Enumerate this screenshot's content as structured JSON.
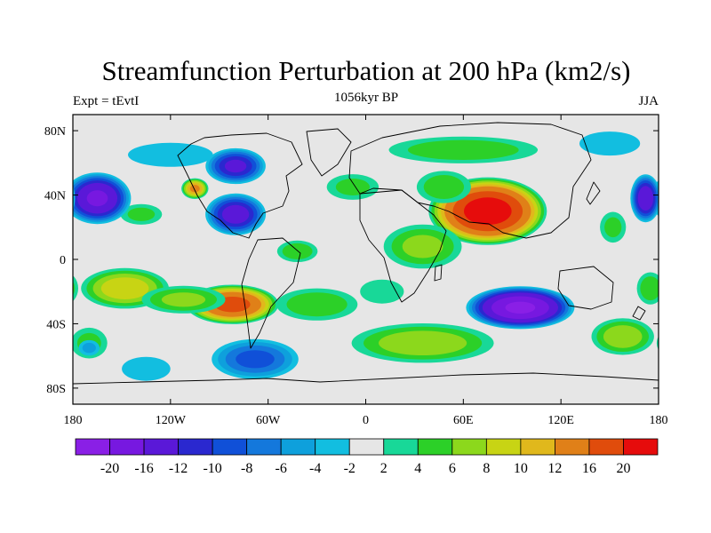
{
  "title": "Streamfunction Perturbation at 200 hPa (km2/s)",
  "left_label": "Expt = tEvtI",
  "center_label": "1056kyr BP",
  "right_label": "JJA",
  "y_ticks": [
    {
      "lat": 80,
      "label": "80N"
    },
    {
      "lat": 40,
      "label": "40N"
    },
    {
      "lat": 0,
      "label": "0"
    },
    {
      "lat": -40,
      "label": "40S"
    },
    {
      "lat": -80,
      "label": "80S"
    }
  ],
  "x_ticks": [
    {
      "lon": -180,
      "label": "180"
    },
    {
      "lon": -120,
      "label": "120W"
    },
    {
      "lon": -60,
      "label": "60W"
    },
    {
      "lon": 0,
      "label": "0"
    },
    {
      "lon": 60,
      "label": "60E"
    },
    {
      "lon": 120,
      "label": "120E"
    },
    {
      "lon": 180,
      "label": "180"
    }
  ],
  "colorbar": {
    "colors": [
      "#8a1fe6",
      "#7718e0",
      "#5a18d8",
      "#2a28cf",
      "#1050d8",
      "#1478dc",
      "#0ea0dc",
      "#12bee0",
      "#e6e6e6",
      "#18d898",
      "#2cd028",
      "#8cd81c",
      "#c8d414",
      "#e0b81c",
      "#e08018",
      "#e04c0c",
      "#e60c0c"
    ],
    "labels": [
      "-20",
      "-16",
      "-12",
      "-10",
      "-8",
      "-6",
      "-4",
      "-2",
      "2",
      "4",
      "6",
      "8",
      "10",
      "12",
      "16",
      "20"
    ]
  },
  "chart_data": {
    "type": "heatmap",
    "title": "Streamfunction Perturbation at 200 hPa (km2/s)",
    "variable": "Streamfunction Perturbation",
    "level": "200 hPa",
    "units": "km2/s",
    "experiment": "tEvtI",
    "time": "1056kyr BP",
    "season": "JJA",
    "lon_range": [
      -180,
      180
    ],
    "lat_range": [
      -90,
      90
    ],
    "contour_levels": [
      -20,
      -16,
      -12,
      -10,
      -8,
      -6,
      -4,
      -2,
      2,
      4,
      6,
      8,
      10,
      12,
      16,
      20
    ],
    "features": [
      {
        "lon": 75,
        "lat": 30,
        "lon_width": 38,
        "lat_width": 22,
        "value": 22
      },
      {
        "lon": 48,
        "lat": 45,
        "lon_width": 20,
        "lat_width": 12,
        "value": 5
      },
      {
        "lon": 60,
        "lat": 68,
        "lon_width": 55,
        "lat_width": 10,
        "value": 5
      },
      {
        "lon": 35,
        "lat": 8,
        "lon_width": 28,
        "lat_width": 16,
        "value": 6
      },
      {
        "lon": -8,
        "lat": 45,
        "lon_width": 20,
        "lat_width": 10,
        "value": 4
      },
      {
        "lon": -42,
        "lat": 5,
        "lon_width": 15,
        "lat_width": 8,
        "value": 5
      },
      {
        "lon": -82,
        "lat": -28,
        "lon_width": 30,
        "lat_width": 13,
        "value": 17
      },
      {
        "lon": -148,
        "lat": -18,
        "lon_width": 30,
        "lat_width": 14,
        "value": 9
      },
      {
        "lon": -112,
        "lat": -25,
        "lon_width": 30,
        "lat_width": 10,
        "value": 6
      },
      {
        "lon": -30,
        "lat": -28,
        "lon_width": 30,
        "lat_width": 12,
        "value": 5
      },
      {
        "lon": 10,
        "lat": -20,
        "lon_width": 18,
        "lat_width": 10,
        "value": 3
      },
      {
        "lon": 35,
        "lat": -52,
        "lon_width": 50,
        "lat_width": 14,
        "value": 7
      },
      {
        "lon": 158,
        "lat": -48,
        "lon_width": 22,
        "lat_width": 13,
        "value": 7
      },
      {
        "lon": -170,
        "lat": -52,
        "lon_width": 14,
        "lat_width": 12,
        "value": 4
      },
      {
        "lon": 175,
        "lat": -18,
        "lon_width": 10,
        "lat_width": 12,
        "value": 5
      },
      {
        "lon": -138,
        "lat": 28,
        "lon_width": 16,
        "lat_width": 8,
        "value": 4
      },
      {
        "lon": -105,
        "lat": 44,
        "lon_width": 9,
        "lat_width": 7,
        "value": 12
      },
      {
        "lon": 152,
        "lat": 20,
        "lon_width": 10,
        "lat_width": 12,
        "value": 4
      },
      {
        "lon": 95,
        "lat": -30,
        "lon_width": 35,
        "lat_width": 14,
        "value": -20
      },
      {
        "lon": -165,
        "lat": 38,
        "lon_width": 22,
        "lat_width": 17,
        "value": -16
      },
      {
        "lon": 172,
        "lat": 38,
        "lon_width": 10,
        "lat_width": 16,
        "value": -14
      },
      {
        "lon": -80,
        "lat": 28,
        "lon_width": 20,
        "lat_width": 14,
        "value": -13
      },
      {
        "lon": -80,
        "lat": 58,
        "lon_width": 20,
        "lat_width": 12,
        "value": -12
      },
      {
        "lon": -120,
        "lat": 65,
        "lon_width": 35,
        "lat_width": 10,
        "value": -3
      },
      {
        "lon": -68,
        "lat": -62,
        "lon_width": 30,
        "lat_width": 14,
        "value": -8
      },
      {
        "lon": -135,
        "lat": -68,
        "lon_width": 20,
        "lat_width": 10,
        "value": -3
      },
      {
        "lon": 150,
        "lat": 72,
        "lon_width": 25,
        "lat_width": 10,
        "value": -3
      },
      {
        "lon": -170,
        "lat": -55,
        "lon_width": 8,
        "lat_width": 6,
        "value": -4
      }
    ]
  }
}
